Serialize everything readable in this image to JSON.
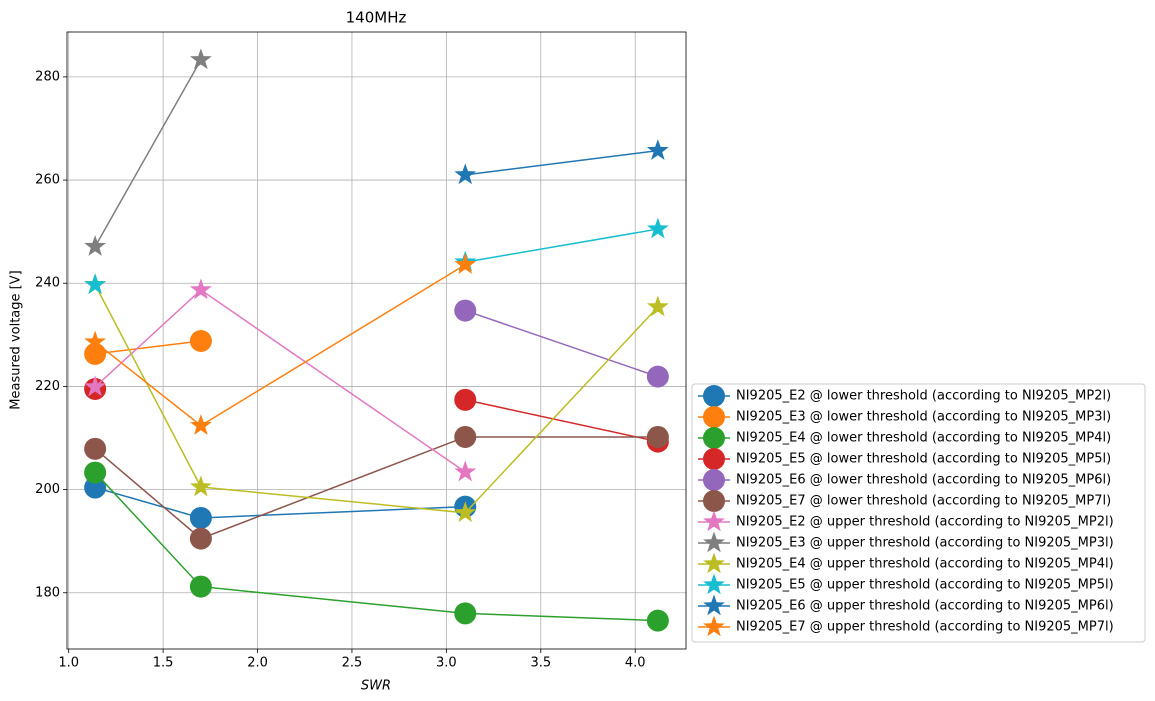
{
  "chart_data": {
    "type": "line",
    "title": "140MHz",
    "xlabel": "SWR",
    "ylabel": "Measured voltage [V]",
    "x": [
      1.14,
      1.7,
      3.1,
      4.12
    ],
    "xlim": [
      0.991,
      4.269
    ],
    "ylim": [
      169.1,
      288.7
    ],
    "xticks": [
      {
        "value": 1.0,
        "label": "1.0"
      },
      {
        "value": 1.5,
        "label": "1.5"
      },
      {
        "value": 2.0,
        "label": "2.0"
      },
      {
        "value": 2.5,
        "label": "2.5"
      },
      {
        "value": 3.0,
        "label": "3.0"
      },
      {
        "value": 3.5,
        "label": "3.5"
      },
      {
        "value": 4.0,
        "label": "4.0"
      }
    ],
    "yticks": [
      180,
      200,
      220,
      240,
      260,
      280
    ],
    "grid": true,
    "legend": "outside right bottom",
    "series": [
      {
        "name": "NI9205_E2 @ lower threshold (according to NI9205_MP2l)",
        "color": "#1f77b4",
        "marker": "circle",
        "values": [
          200.4,
          194.5,
          196.7,
          null
        ]
      },
      {
        "name": "NI9205_E3 @ lower threshold (according to NI9205_MP3l)",
        "color": "#ff7f0e",
        "marker": "circle",
        "values": [
          226.3,
          228.8,
          null,
          null
        ]
      },
      {
        "name": "NI9205_E4 @ lower threshold (according to NI9205_MP4l)",
        "color": "#2ca02c",
        "marker": "circle",
        "values": [
          203.3,
          181.2,
          176.0,
          174.6
        ]
      },
      {
        "name": "NI9205_E5 @ lower threshold (according to NI9205_MP5l)",
        "color": "#d62728",
        "marker": "circle",
        "values": [
          219.5,
          null,
          217.4,
          209.3
        ]
      },
      {
        "name": "NI9205_E6 @ lower threshold (according to NI9205_MP6l)",
        "color": "#9467bd",
        "marker": "circle",
        "values": [
          null,
          null,
          234.7,
          221.9
        ]
      },
      {
        "name": "NI9205_E7 @ lower threshold (according to NI9205_MP7l)",
        "color": "#8c564b",
        "marker": "circle",
        "values": [
          207.9,
          190.5,
          210.2,
          210.2
        ]
      },
      {
        "name": "NI9205_E2 @ upper threshold (according to NI9205_MP2l)",
        "color": "#e377c2",
        "marker": "star",
        "values": [
          219.9,
          238.7,
          203.4,
          null
        ]
      },
      {
        "name": "NI9205_E3 @ upper threshold (according to NI9205_MP3l)",
        "color": "#7f7f7f",
        "marker": "star",
        "values": [
          247.1,
          283.3,
          null,
          null
        ]
      },
      {
        "name": "NI9205_E4 @ upper threshold (according to NI9205_MP4l)",
        "color": "#bcbd22",
        "marker": "star",
        "values": [
          239.7,
          200.5,
          195.5,
          235.4
        ]
      },
      {
        "name": "NI9205_E5 @ upper threshold (according to NI9205_MP5l)",
        "color": "#17becf",
        "marker": "star",
        "values": [
          239.7,
          null,
          244.1,
          250.5
        ]
      },
      {
        "name": "NI9205_E6 @ upper threshold (according to NI9205_MP6l)",
        "color": "#1f77b4",
        "marker": "star",
        "values": [
          null,
          null,
          261.0,
          265.7
        ]
      },
      {
        "name": "NI9205_E7 @ upper threshold (according to NI9205_MP7l)",
        "color": "#ff7f0e",
        "marker": "star",
        "values": [
          228.6,
          212.4,
          243.6,
          null
        ]
      }
    ]
  }
}
